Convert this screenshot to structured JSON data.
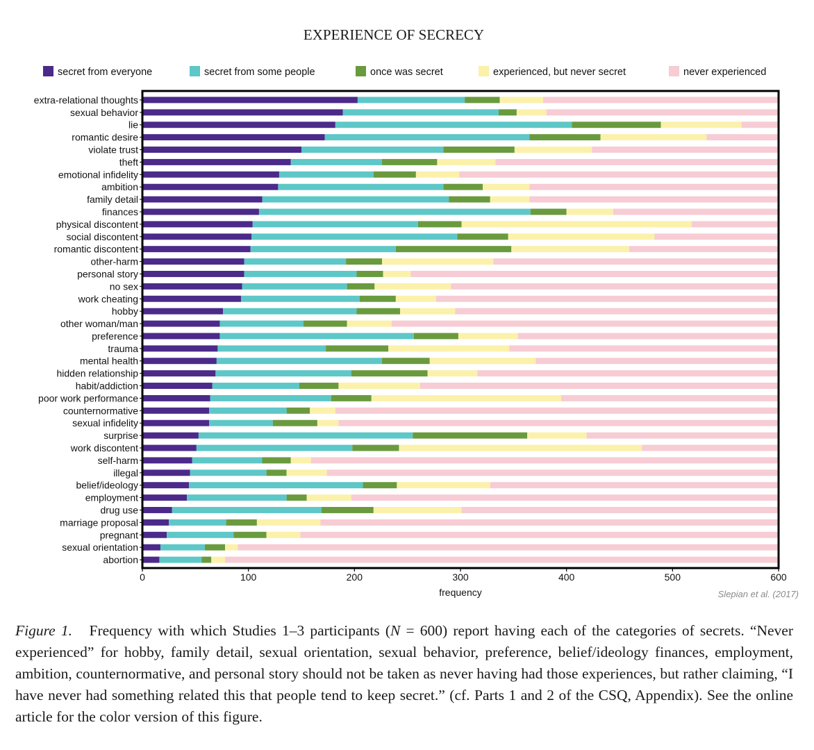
{
  "chart_data": {
    "type": "bar",
    "orientation": "horizontal",
    "stacked": true,
    "title": "EXPERIENCE OF SECRECY",
    "xlabel": "frequency",
    "ylabel": "",
    "xlim": [
      0,
      600
    ],
    "xticks": [
      0,
      100,
      200,
      300,
      400,
      500,
      600
    ],
    "legend_position": "top",
    "source_note": "Slepian et al. (2017)",
    "categories": [
      "extra-relational thoughts",
      "sexual behavior",
      "lie",
      "romantic desire",
      "violate trust",
      "theft",
      "emotional infidelity",
      "ambition",
      "family detail",
      "finances",
      "physical discontent",
      "social discontent",
      "romantic discontent",
      "other-harm",
      "personal story",
      "no sex",
      "work cheating",
      "hobby",
      "other woman/man",
      "preference",
      "trauma",
      "mental health",
      "hidden relationship",
      "habit/addiction",
      "poor work performance",
      "counternormative",
      "sexual infidelity",
      "surprise",
      "work discontent",
      "self-harm",
      "illegal",
      "belief/ideology",
      "employment",
      "drug use",
      "marriage proposal",
      "pregnant",
      "sexual orientation",
      "abortion"
    ],
    "series": [
      {
        "name": "secret from everyone",
        "color": "#4b2a8a",
        "values": [
          203,
          189,
          182,
          172,
          150,
          140,
          129,
          128,
          113,
          110,
          104,
          103,
          102,
          96,
          96,
          94,
          93,
          76,
          73,
          73,
          71,
          70,
          69,
          66,
          64,
          63,
          63,
          53,
          51,
          47,
          45,
          44,
          42,
          28,
          25,
          23,
          17,
          16
        ]
      },
      {
        "name": "secret from some people",
        "color": "#5ec7c7",
        "values": [
          101,
          147,
          223,
          193,
          134,
          86,
          89,
          156,
          176,
          256,
          156,
          194,
          137,
          96,
          106,
          99,
          112,
          126,
          79,
          183,
          102,
          156,
          128,
          82,
          114,
          73,
          60,
          202,
          147,
          66,
          72,
          164,
          94,
          141,
          54,
          63,
          42,
          40
        ]
      },
      {
        "name": "once was secret",
        "color": "#6a9a3e",
        "values": [
          33,
          17,
          84,
          67,
          67,
          52,
          40,
          37,
          39,
          34,
          41,
          48,
          109,
          34,
          25,
          26,
          34,
          41,
          41,
          42,
          59,
          45,
          72,
          37,
          38,
          22,
          42,
          108,
          44,
          27,
          19,
          32,
          19,
          49,
          29,
          31,
          19,
          9
        ]
      },
      {
        "name": "experienced, but never secret",
        "color": "#fbf1aa",
        "values": [
          41,
          28,
          76,
          100,
          73,
          55,
          41,
          44,
          37,
          44,
          217,
          138,
          111,
          105,
          26,
          72,
          38,
          52,
          42,
          56,
          114,
          100,
          47,
          77,
          179,
          24,
          20,
          56,
          229,
          19,
          38,
          88,
          42,
          83,
          60,
          32,
          12,
          13
        ]
      },
      {
        "name": "never experienced",
        "color": "#f7ccd4",
        "values": [
          222,
          219,
          35,
          68,
          176,
          267,
          301,
          235,
          235,
          156,
          82,
          117,
          141,
          269,
          347,
          309,
          323,
          305,
          365,
          246,
          254,
          229,
          284,
          338,
          205,
          418,
          415,
          181,
          129,
          441,
          426,
          272,
          403,
          299,
          432,
          451,
          510,
          522
        ]
      }
    ]
  },
  "caption": {
    "figure_label": "Figure 1.",
    "text_1": "Frequency with which Studies 1–3 participants (",
    "n_symbol": "N",
    "text_2": " = 600) report having each of the categories of secrets. “Never experienced” for hobby, family detail, sexual orientation, sexual behavior, preference, belief/ideology finances, employment, ambition, counternormative, and personal story should not be taken as never having had those experiences, but rather claiming, “I have never had something related this that people tend to keep secret.” (cf. Parts 1 and 2 of the CSQ, Appendix). See the online article for the color version of this figure."
  }
}
